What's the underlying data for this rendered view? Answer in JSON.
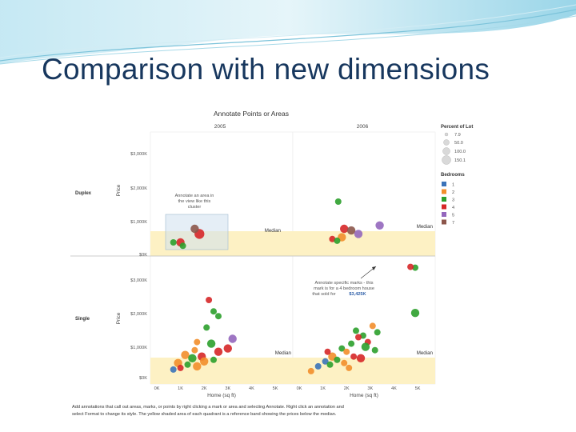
{
  "slide": {
    "title": "Comparison with new dimensions"
  },
  "viz": {
    "title": "Annotate Points or Areas",
    "column_headers": [
      "2005",
      "2006"
    ],
    "row_headers": [
      "Duplex",
      "Single"
    ],
    "y_axis_title": "Price",
    "x_axis_title": "Home (sq ft)",
    "y_ticks": [
      "$3,000K",
      "$2,000K",
      "$1,000K",
      "$0K"
    ],
    "x_ticks": [
      "0K",
      "1K",
      "2K",
      "3K",
      "4K",
      "5K"
    ],
    "reference_label": "Median",
    "annotations": {
      "area": "Annotate an area in the view like this cluster",
      "point_prefix": "Annotate specific marks - this mark is for a 4 bedroom house that sold for",
      "point_value": "$3,425K"
    },
    "legend": {
      "size_title": "Percent of Lot",
      "size_items": [
        "7.9",
        "50.0",
        "100.0",
        "150.1"
      ],
      "color_title": "Bedrooms",
      "color_items": [
        {
          "label": "1",
          "color": "#3b73b9"
        },
        {
          "label": "2",
          "color": "#f28e2b"
        },
        {
          "label": "3",
          "color": "#2ca02c"
        },
        {
          "label": "4",
          "color": "#d62728"
        },
        {
          "label": "5",
          "color": "#9467bd"
        },
        {
          "label": "7",
          "color": "#8c564b"
        }
      ]
    },
    "caption_lines": [
      "Add annotations that call out areas, marks, or points by right clicking a mark or area and selecting Annotate. Right click an annotation and",
      "select Format to change its style. The yellow shaded area of each quadrant is a reference band showing the prices below the median."
    ]
  },
  "chart_data": {
    "type": "scatter",
    "title": "Annotate Points or Areas",
    "xlabel": "Home (sq ft)",
    "ylabel": "Price",
    "ylim": [
      0,
      3500
    ],
    "xlim": [
      0,
      5500
    ],
    "color_by": "Bedrooms",
    "size_by": "Percent of Lot",
    "panels": [
      {
        "row": "Duplex",
        "year": "2005",
        "median": 700,
        "points": [
          {
            "x": 1000,
            "y": 400,
            "bedrooms": "4",
            "size": 2
          },
          {
            "x": 1100,
            "y": 300,
            "bedrooms": "3",
            "size": 1
          },
          {
            "x": 700,
            "y": 400,
            "bedrooms": "3",
            "size": 1
          },
          {
            "x": 1800,
            "y": 650,
            "bedrooms": "4",
            "size": 3
          },
          {
            "x": 1600,
            "y": 800,
            "bedrooms": "7",
            "size": 2
          }
        ]
      },
      {
        "row": "Duplex",
        "year": "2006",
        "median": 700,
        "points": [
          {
            "x": 1650,
            "y": 1600,
            "bedrooms": "3",
            "size": 1
          },
          {
            "x": 1900,
            "y": 800,
            "bedrooms": "4",
            "size": 2
          },
          {
            "x": 2200,
            "y": 750,
            "bedrooms": "7",
            "size": 2
          },
          {
            "x": 2500,
            "y": 650,
            "bedrooms": "5",
            "size": 2
          },
          {
            "x": 3400,
            "y": 900,
            "bedrooms": "5",
            "size": 2
          },
          {
            "x": 1400,
            "y": 500,
            "bedrooms": "4",
            "size": 1
          },
          {
            "x": 1800,
            "y": 550,
            "bedrooms": "2",
            "size": 2
          },
          {
            "x": 1600,
            "y": 450,
            "bedrooms": "3",
            "size": 1
          }
        ]
      },
      {
        "row": "Single",
        "year": "2005",
        "median": 700,
        "points": [
          {
            "x": 2600,
            "y": 1900,
            "bedrooms": "3",
            "size": 1
          },
          {
            "x": 2400,
            "y": 2050,
            "bedrooms": "3",
            "size": 1
          },
          {
            "x": 2200,
            "y": 2400,
            "bedrooms": "4",
            "size": 1
          },
          {
            "x": 2100,
            "y": 1550,
            "bedrooms": "3",
            "size": 1
          },
          {
            "x": 3200,
            "y": 1200,
            "bedrooms": "5",
            "size": 2
          },
          {
            "x": 1700,
            "y": 1100,
            "bedrooms": "2",
            "size": 1
          },
          {
            "x": 2300,
            "y": 1050,
            "bedrooms": "3",
            "size": 2
          },
          {
            "x": 2600,
            "y": 800,
            "bedrooms": "4",
            "size": 2
          },
          {
            "x": 3000,
            "y": 900,
            "bedrooms": "4",
            "size": 2
          },
          {
            "x": 1200,
            "y": 700,
            "bedrooms": "2",
            "size": 2
          },
          {
            "x": 1500,
            "y": 600,
            "bedrooms": "3",
            "size": 2
          },
          {
            "x": 1900,
            "y": 650,
            "bedrooms": "4",
            "size": 2
          },
          {
            "x": 2000,
            "y": 500,
            "bedrooms": "2",
            "size": 2
          },
          {
            "x": 900,
            "y": 450,
            "bedrooms": "2",
            "size": 2
          },
          {
            "x": 1300,
            "y": 400,
            "bedrooms": "3",
            "size": 1
          },
          {
            "x": 1700,
            "y": 350,
            "bedrooms": "2",
            "size": 2
          },
          {
            "x": 700,
            "y": 250,
            "bedrooms": "1",
            "size": 1
          },
          {
            "x": 1000,
            "y": 300,
            "bedrooms": "4",
            "size": 1
          },
          {
            "x": 2400,
            "y": 550,
            "bedrooms": "3",
            "size": 1
          },
          {
            "x": 1600,
            "y": 850,
            "bedrooms": "2",
            "size": 1
          }
        ]
      },
      {
        "row": "Single",
        "year": "2006",
        "median": 700,
        "points": [
          {
            "x": 4900,
            "y": 3400,
            "bedrooms": "3",
            "size": 1
          },
          {
            "x": 4900,
            "y": 2000,
            "bedrooms": "3",
            "size": 2
          },
          {
            "x": 4700,
            "y": 3425,
            "bedrooms": "4",
            "size": 1
          },
          {
            "x": 2400,
            "y": 1450,
            "bedrooms": "3",
            "size": 1
          },
          {
            "x": 2700,
            "y": 1300,
            "bedrooms": "3",
            "size": 1
          },
          {
            "x": 3300,
            "y": 1400,
            "bedrooms": "3",
            "size": 1
          },
          {
            "x": 2900,
            "y": 1100,
            "bedrooms": "4",
            "size": 1
          },
          {
            "x": 2200,
            "y": 1050,
            "bedrooms": "3",
            "size": 1
          },
          {
            "x": 2800,
            "y": 950,
            "bedrooms": "3",
            "size": 2
          },
          {
            "x": 3200,
            "y": 850,
            "bedrooms": "3",
            "size": 1
          },
          {
            "x": 1800,
            "y": 900,
            "bedrooms": "3",
            "size": 1
          },
          {
            "x": 2000,
            "y": 800,
            "bedrooms": "2",
            "size": 1
          },
          {
            "x": 1400,
            "y": 650,
            "bedrooms": "2",
            "size": 2
          },
          {
            "x": 2300,
            "y": 650,
            "bedrooms": "4",
            "size": 1
          },
          {
            "x": 1600,
            "y": 550,
            "bedrooms": "3",
            "size": 1
          },
          {
            "x": 2600,
            "y": 600,
            "bedrooms": "4",
            "size": 2
          },
          {
            "x": 1100,
            "y": 500,
            "bedrooms": "1",
            "size": 1
          },
          {
            "x": 1900,
            "y": 450,
            "bedrooms": "2",
            "size": 1
          },
          {
            "x": 800,
            "y": 350,
            "bedrooms": "1",
            "size": 1
          },
          {
            "x": 500,
            "y": 200,
            "bedrooms": "2",
            "size": 1
          },
          {
            "x": 1300,
            "y": 400,
            "bedrooms": "3",
            "size": 1
          },
          {
            "x": 2100,
            "y": 300,
            "bedrooms": "2",
            "size": 1
          },
          {
            "x": 3100,
            "y": 1600,
            "bedrooms": "2",
            "size": 1
          },
          {
            "x": 2500,
            "y": 1250,
            "bedrooms": "4",
            "size": 1
          },
          {
            "x": 1200,
            "y": 800,
            "bedrooms": "4",
            "size": 1
          }
        ]
      }
    ]
  }
}
